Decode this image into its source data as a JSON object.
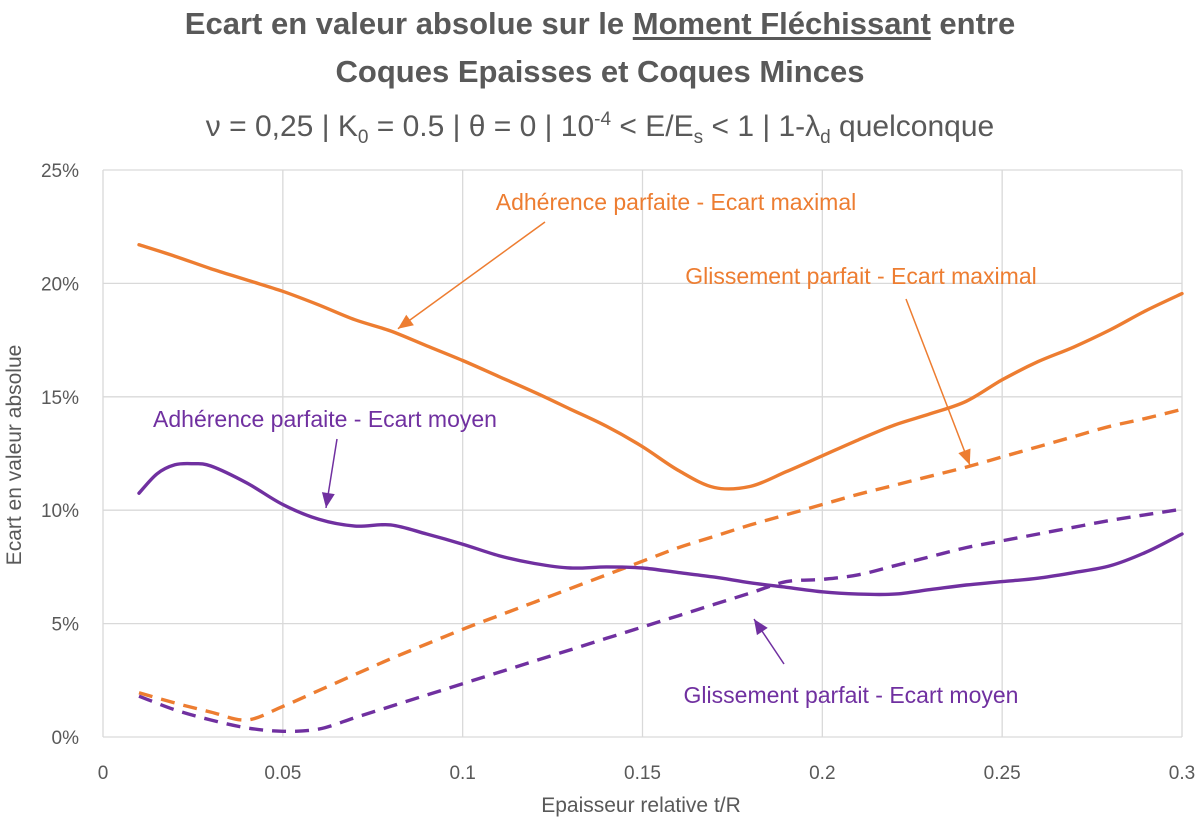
{
  "title": {
    "part1": "Ecart en valeur absolue sur le ",
    "underlined": "Moment Fléchissant",
    "part2": " entre",
    "line2": "Coques Epaisses et Coques Minces"
  },
  "subtitle": {
    "s1": "ν = 0,25 | K",
    "sub1": "0",
    "s2": " = 0.5 | θ = 0 | 10",
    "sup1": "-4",
    "s3": " < E/E",
    "sub2": "s",
    "s4": " < 1 | 1-λ",
    "sub3": "d",
    "s5": " quelconque"
  },
  "chart_data": {
    "type": "line",
    "xlabel": "Epaisseur relative t/R",
    "ylabel": "Ecart en valeur absolue",
    "xlim": [
      0,
      0.3
    ],
    "ylim": [
      0,
      0.25
    ],
    "x_ticks": [
      0,
      0.05,
      0.1,
      0.15,
      0.2,
      0.25,
      0.3
    ],
    "x_tick_labels": [
      "0",
      "0.05",
      "0.1",
      "0.15",
      "0.2",
      "0.25",
      "0.3"
    ],
    "y_ticks": [
      0,
      0.05,
      0.1,
      0.15,
      0.2,
      0.25
    ],
    "y_tick_labels": [
      "0%",
      "5%",
      "10%",
      "15%",
      "20%",
      "25%"
    ],
    "grid": true,
    "colors": {
      "orange": "#ED7D31",
      "purple": "#7030A0"
    },
    "series": [
      {
        "name": "Adhérence parfaite - Ecart maximal",
        "color": "#ED7D31",
        "dash": false,
        "x": [
          0.01,
          0.02,
          0.03,
          0.04,
          0.05,
          0.06,
          0.07,
          0.08,
          0.09,
          0.1,
          0.11,
          0.12,
          0.13,
          0.14,
          0.15,
          0.16,
          0.17,
          0.18,
          0.19,
          0.2,
          0.21,
          0.22,
          0.23,
          0.24,
          0.25,
          0.26,
          0.27,
          0.28,
          0.29,
          0.3
        ],
        "y": [
          0.217,
          0.212,
          0.2065,
          0.2015,
          0.1965,
          0.1905,
          0.184,
          0.179,
          0.1725,
          0.166,
          0.159,
          0.152,
          0.1445,
          0.137,
          0.128,
          0.1175,
          0.11,
          0.1105,
          0.117,
          0.124,
          0.131,
          0.1375,
          0.1425,
          0.148,
          0.1575,
          0.1655,
          0.172,
          0.1795,
          0.188,
          0.1955
        ]
      },
      {
        "name": "Glissement parfait - Ecart maximal",
        "color": "#ED7D31",
        "dash": true,
        "x": [
          0.01,
          0.02,
          0.03,
          0.04,
          0.05,
          0.06,
          0.07,
          0.08,
          0.09,
          0.1,
          0.11,
          0.12,
          0.13,
          0.14,
          0.15,
          0.16,
          0.17,
          0.18,
          0.19,
          0.2,
          0.21,
          0.22,
          0.23,
          0.24,
          0.25,
          0.26,
          0.27,
          0.28,
          0.29,
          0.3
        ],
        "y": [
          0.0195,
          0.015,
          0.011,
          0.0075,
          0.0135,
          0.0205,
          0.0275,
          0.0345,
          0.041,
          0.0475,
          0.0535,
          0.0595,
          0.0655,
          0.0715,
          0.0775,
          0.0835,
          0.0885,
          0.0935,
          0.098,
          0.1025,
          0.107,
          0.111,
          0.115,
          0.119,
          0.1235,
          0.128,
          0.1325,
          0.137,
          0.1405,
          0.1445
        ]
      },
      {
        "name": "Adhérence parfaite - Ecart moyen",
        "color": "#7030A0",
        "dash": false,
        "x": [
          0.01,
          0.015,
          0.02,
          0.025,
          0.03,
          0.04,
          0.05,
          0.06,
          0.07,
          0.08,
          0.09,
          0.1,
          0.11,
          0.12,
          0.13,
          0.14,
          0.15,
          0.16,
          0.17,
          0.18,
          0.19,
          0.2,
          0.21,
          0.22,
          0.23,
          0.24,
          0.25,
          0.26,
          0.27,
          0.28,
          0.29,
          0.3
        ],
        "y": [
          0.1075,
          0.116,
          0.12,
          0.1205,
          0.1195,
          0.112,
          0.1025,
          0.096,
          0.093,
          0.0935,
          0.0895,
          0.085,
          0.08,
          0.0765,
          0.0745,
          0.075,
          0.0745,
          0.0725,
          0.0705,
          0.068,
          0.066,
          0.064,
          0.063,
          0.063,
          0.065,
          0.067,
          0.0685,
          0.07,
          0.0725,
          0.0755,
          0.0815,
          0.0895
        ]
      },
      {
        "name": "Glissement parfait - Ecart moyen",
        "color": "#7030A0",
        "dash": true,
        "x": [
          0.01,
          0.02,
          0.03,
          0.04,
          0.05,
          0.06,
          0.07,
          0.08,
          0.09,
          0.1,
          0.11,
          0.12,
          0.13,
          0.14,
          0.15,
          0.16,
          0.17,
          0.18,
          0.19,
          0.2,
          0.21,
          0.22,
          0.23,
          0.24,
          0.25,
          0.26,
          0.27,
          0.28,
          0.29,
          0.3
        ],
        "y": [
          0.018,
          0.012,
          0.0075,
          0.004,
          0.0025,
          0.0035,
          0.0085,
          0.0135,
          0.0185,
          0.0235,
          0.0285,
          0.0335,
          0.0385,
          0.0435,
          0.0485,
          0.0535,
          0.0585,
          0.0635,
          0.0685,
          0.0695,
          0.0715,
          0.0755,
          0.0795,
          0.0835,
          0.0865,
          0.0895,
          0.0925,
          0.0955,
          0.098,
          0.1005
        ]
      }
    ],
    "annotations": [
      {
        "text": "Adhérence parfaite - Ecart maximal",
        "color": "#ED7D31",
        "arrow_to": [
          0.082,
          0.18
        ]
      },
      {
        "text": "Glissement parfait - Ecart maximal",
        "color": "#ED7D31",
        "arrow_to": [
          0.241,
          0.12
        ]
      },
      {
        "text": "Adhérence parfaite - Ecart moyen",
        "color": "#7030A0",
        "arrow_to": [
          0.062,
          0.101
        ]
      },
      {
        "text": "Glissement parfait - Ecart moyen",
        "color": "#7030A0",
        "arrow_to": [
          0.181,
          0.052
        ]
      }
    ]
  }
}
